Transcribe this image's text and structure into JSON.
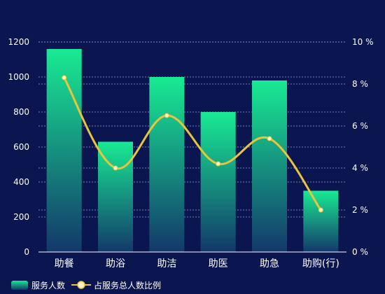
{
  "chart_data": {
    "type": "bar",
    "categories": [
      "助餐",
      "助浴",
      "助洁",
      "助医",
      "助急",
      "助购(行)"
    ],
    "series": [
      {
        "name": "服务人数",
        "type": "bar",
        "axis": "left",
        "values": [
          1160,
          630,
          1000,
          800,
          980,
          350
        ]
      },
      {
        "name": "占服务总人数比例",
        "type": "line",
        "smooth": true,
        "axis": "right",
        "values": [
          8.3,
          4.0,
          6.5,
          4.2,
          5.4,
          2.0
        ]
      }
    ],
    "left_axis": {
      "min": 0,
      "max": 1200,
      "ticks": [
        "0",
        "200",
        "400",
        "600",
        "800",
        "1000",
        "1200"
      ]
    },
    "right_axis": {
      "min": 0,
      "max": 10,
      "unit": "%",
      "ticks": [
        "0 %",
        "2 %",
        "4 %",
        "6 %",
        "8 %",
        "10 %"
      ]
    },
    "grid": "dashed horizontal",
    "legend_position": "bottom-left",
    "colors": {
      "background": "#0b1650",
      "bar_top": "#19ea93",
      "bar_bottom": "#13386a",
      "line": "#e8c53a",
      "point_fill": "#fff3c4",
      "grid": "#8f9bc4"
    }
  }
}
